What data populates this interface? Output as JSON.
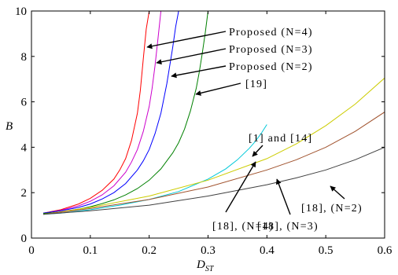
{
  "chart_data": {
    "type": "line",
    "title": "",
    "xlabel": "D",
    "xlabel_sub": "ST",
    "ylabel": "B",
    "xlim": [
      0,
      0.6
    ],
    "ylim": [
      0,
      10
    ],
    "x_ticks": [
      0,
      0.1,
      0.2,
      0.3,
      0.4,
      0.5,
      0.6
    ],
    "x_tick_labels": [
      "0",
      "0.1",
      "0.2",
      "0.3",
      "0.4",
      "0.5",
      "0.6"
    ],
    "y_ticks": [
      0,
      2,
      4,
      6,
      8,
      10
    ],
    "y_tick_labels": [
      "0",
      "2",
      "4",
      "6",
      "8",
      "10"
    ],
    "grid": false,
    "series": [
      {
        "name": "Proposed (N=4)",
        "color": "#ff0000",
        "x": [
          0.02,
          0.05,
          0.08,
          0.1,
          0.12,
          0.14,
          0.15,
          0.16,
          0.17,
          0.18,
          0.185,
          0.19,
          0.195,
          0.2
        ],
        "y": [
          1.1,
          1.25,
          1.5,
          1.75,
          2.1,
          2.6,
          3.0,
          3.5,
          4.3,
          5.5,
          6.5,
          7.9,
          9.2,
          10.0
        ]
      },
      {
        "name": "Proposed (N=3)",
        "color": "#cc00cc",
        "x": [
          0.02,
          0.05,
          0.08,
          0.1,
          0.12,
          0.14,
          0.16,
          0.17,
          0.18,
          0.19,
          0.2,
          0.205,
          0.21,
          0.215,
          0.22
        ],
        "y": [
          1.1,
          1.22,
          1.42,
          1.62,
          1.9,
          2.3,
          2.9,
          3.35,
          3.9,
          4.7,
          5.8,
          6.6,
          7.6,
          8.8,
          10.0
        ]
      },
      {
        "name": "Proposed (N=2)",
        "color": "#0000ff",
        "x": [
          0.02,
          0.05,
          0.08,
          0.1,
          0.12,
          0.14,
          0.16,
          0.18,
          0.19,
          0.2,
          0.21,
          0.22,
          0.23,
          0.24,
          0.245,
          0.25
        ],
        "y": [
          1.1,
          1.2,
          1.35,
          1.5,
          1.72,
          2.0,
          2.4,
          3.0,
          3.4,
          3.9,
          4.6,
          5.5,
          6.8,
          8.4,
          9.3,
          10.0
        ]
      },
      {
        "name": "[19]",
        "color": "#008000",
        "x": [
          0.02,
          0.05,
          0.08,
          0.1,
          0.12,
          0.14,
          0.16,
          0.18,
          0.2,
          0.22,
          0.24,
          0.25,
          0.26,
          0.27,
          0.28,
          0.285,
          0.29,
          0.295,
          0.3
        ],
        "y": [
          1.08,
          1.15,
          1.27,
          1.38,
          1.52,
          1.68,
          1.9,
          2.18,
          2.55,
          3.05,
          3.75,
          4.2,
          4.8,
          5.6,
          6.6,
          7.3,
          8.1,
          9.0,
          10.0
        ]
      },
      {
        "name": "[1] and [14]",
        "color": "#00c8d8",
        "x": [
          0.02,
          0.05,
          0.1,
          0.15,
          0.2,
          0.25,
          0.3,
          0.33,
          0.35,
          0.37,
          0.38,
          0.39,
          0.4
        ],
        "y": [
          1.05,
          1.1,
          1.25,
          1.45,
          1.7,
          2.05,
          2.6,
          3.05,
          3.45,
          3.95,
          4.25,
          4.6,
          5.0
        ]
      },
      {
        "name": "[18], (N=4)",
        "color": "#cccc00",
        "x": [
          0.02,
          0.1,
          0.2,
          0.3,
          0.4,
          0.45,
          0.5,
          0.55,
          0.6
        ],
        "y": [
          1.05,
          1.35,
          1.85,
          2.55,
          3.5,
          4.15,
          4.95,
          5.9,
          7.05
        ]
      },
      {
        "name": "[18], (N=3)",
        "color": "#a0522d",
        "x": [
          0.02,
          0.1,
          0.2,
          0.3,
          0.4,
          0.45,
          0.5,
          0.55,
          0.6
        ],
        "y": [
          1.05,
          1.3,
          1.7,
          2.25,
          3.0,
          3.45,
          4.0,
          4.7,
          5.55
        ]
      },
      {
        "name": "[18], (N=2)",
        "color": "#404040",
        "x": [
          0.02,
          0.1,
          0.2,
          0.3,
          0.4,
          0.45,
          0.5,
          0.55,
          0.6
        ],
        "y": [
          1.05,
          1.2,
          1.45,
          1.85,
          2.35,
          2.65,
          3.0,
          3.45,
          4.0
        ]
      }
    ],
    "annotations": [
      {
        "text": "Proposed (N=4)"
      },
      {
        "text": "Proposed (N=3)"
      },
      {
        "text": "Proposed (N=2)"
      },
      {
        "text": "[19]"
      },
      {
        "text": "[1] and [14]"
      },
      {
        "text": "[18], (N=4)"
      },
      {
        "text": "[18], (N=3)"
      },
      {
        "text": "[18], (N=2)"
      }
    ]
  }
}
